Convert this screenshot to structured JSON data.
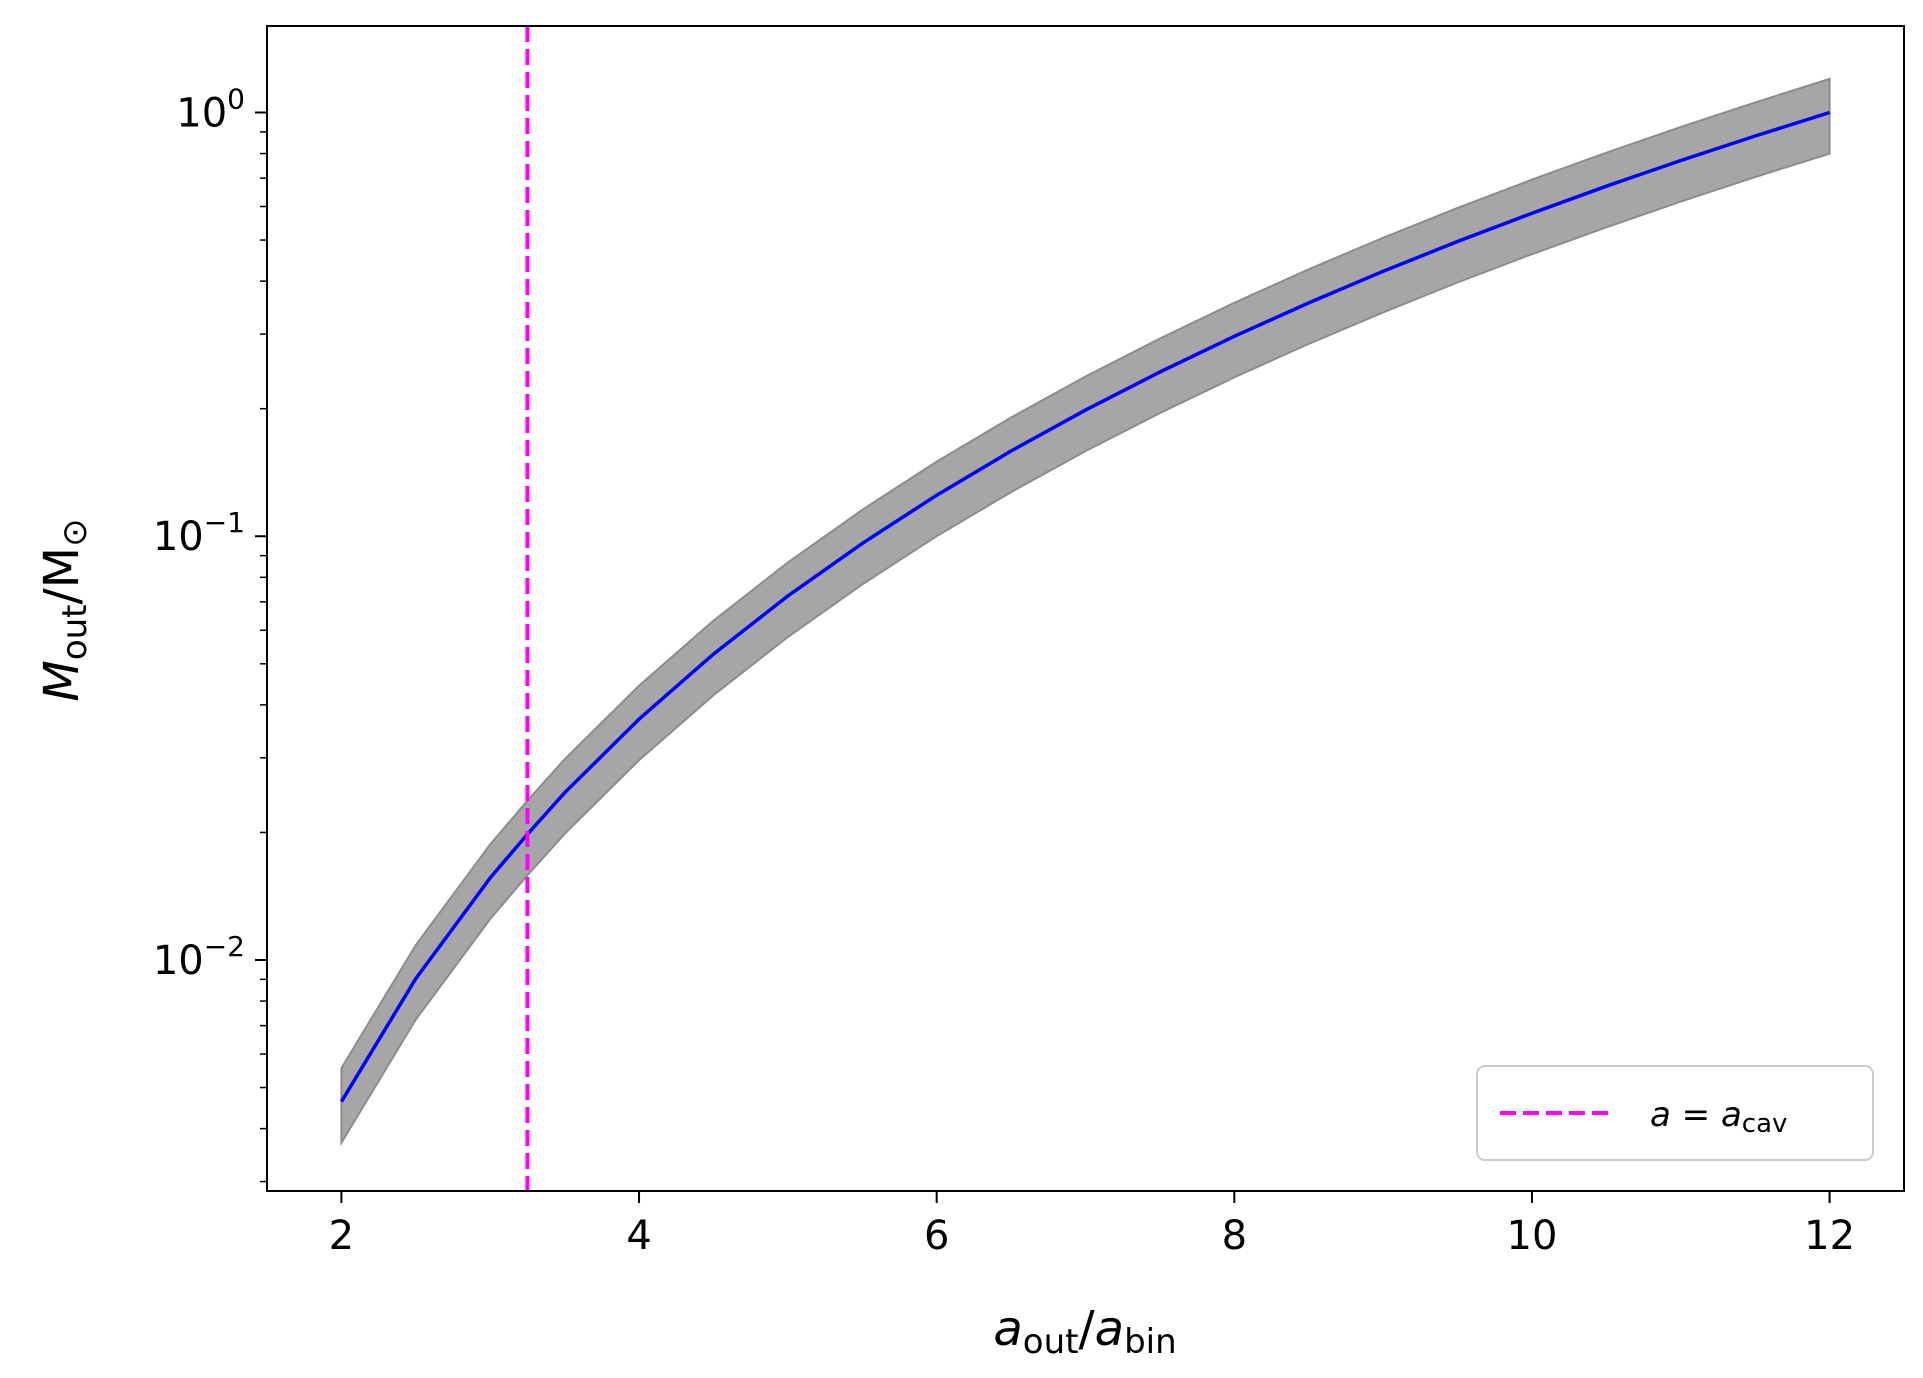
{
  "chart_data": {
    "type": "line",
    "xlabel": {
      "main": "a",
      "sub1": "out",
      "sep": "/",
      "main2": "a",
      "sub2": "bin"
    },
    "ylabel": {
      "main": "M",
      "sub1": "out",
      "sep": "/M",
      "sub2": "⊙"
    },
    "x_ticks": [
      2,
      4,
      6,
      8,
      10,
      12
    ],
    "y_ticks": [
      {
        "value": 0.01,
        "base": "10",
        "exp": "−2"
      },
      {
        "value": 0.1,
        "base": "10",
        "exp": "−1"
      },
      {
        "value": 1,
        "base": "10",
        "exp": "0"
      }
    ],
    "xlim": [
      1.5,
      12.5
    ],
    "ylim": [
      0.00285,
      1.6
    ],
    "yscale": "log",
    "grid": false,
    "series": [
      {
        "kind": "line",
        "color": "#0000ff",
        "x": [
          2.0,
          2.5,
          3.0,
          3.25,
          3.5,
          4.0,
          4.5,
          5.0,
          5.5,
          6.0,
          6.5,
          7.0,
          7.5,
          8.0,
          8.5,
          9.0,
          9.5,
          10.0,
          10.5,
          11.0,
          11.5,
          12.0
        ],
        "y": [
          0.00463,
          0.00904,
          0.01562,
          0.0198,
          0.0248,
          0.037,
          0.0527,
          0.0723,
          0.0962,
          0.125,
          0.1589,
          0.1985,
          0.2441,
          0.2963,
          0.3554,
          0.4219,
          0.4962,
          0.5787,
          0.6699,
          0.7703,
          0.8802,
          1.0
        ]
      },
      {
        "kind": "band",
        "color": "#a6a6a6",
        "upper_factor": 1.2,
        "lower_factor": 0.8
      },
      {
        "kind": "vline",
        "color": "#ff00ff",
        "x": 3.25,
        "name": {
          "lhs": "a",
          "eq": " = ",
          "rhs": "a",
          "sub": "cav"
        }
      }
    ],
    "legend": {
      "placement": "lower-right"
    }
  }
}
